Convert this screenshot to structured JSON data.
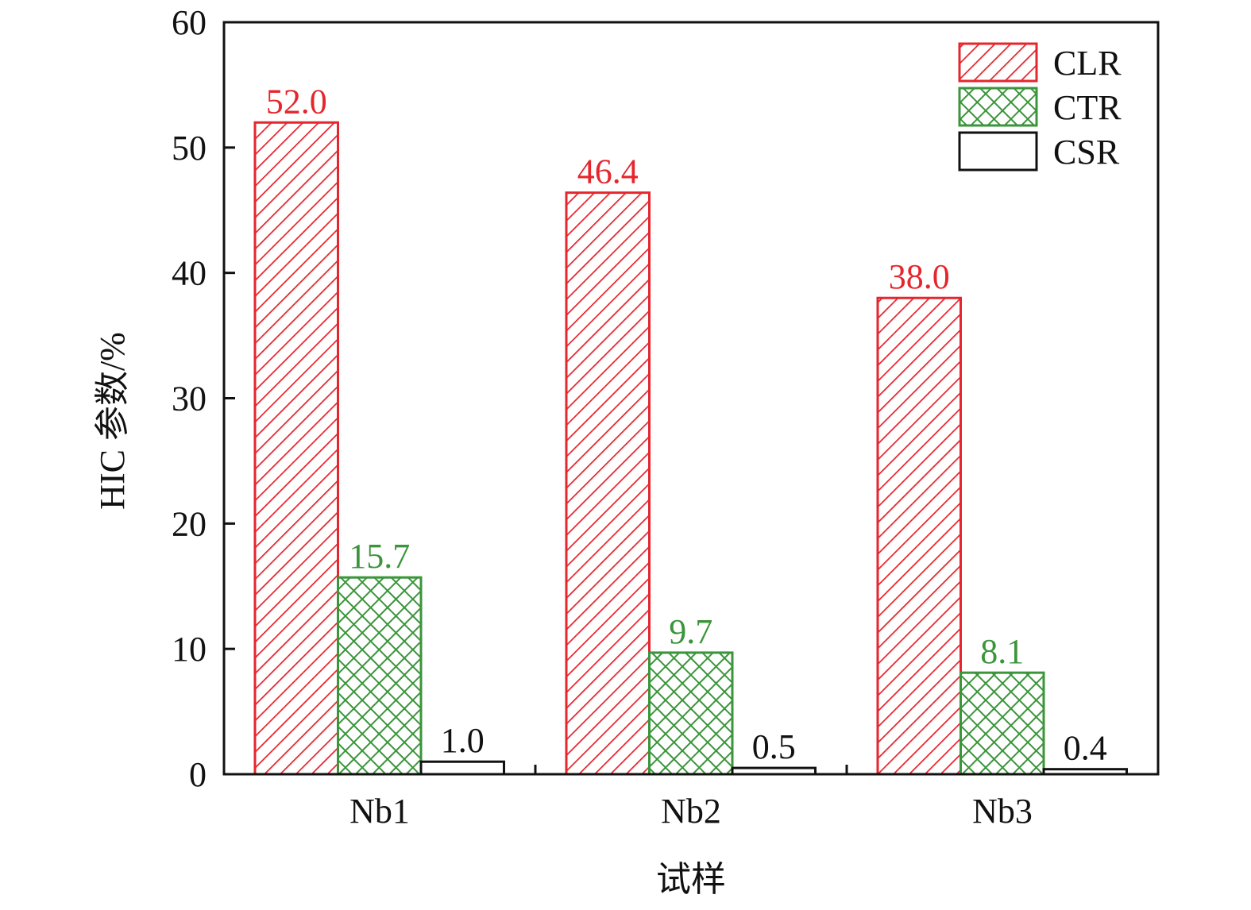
{
  "chart_data": {
    "type": "bar",
    "title": "",
    "xlabel": "试样",
    "ylabel": "HIC 参数/%",
    "ylim": [
      0,
      60
    ],
    "yticks": [
      0,
      10,
      20,
      30,
      40,
      50,
      60
    ],
    "categories": [
      "Nb1",
      "Nb2",
      "Nb3"
    ],
    "legend_position": "top-right",
    "series": [
      {
        "name": "CLR",
        "values": [
          52.0,
          46.4,
          38.0
        ],
        "labels": [
          "52.0",
          "46.4",
          "38.0"
        ],
        "color": "#e5262d",
        "pattern": "diagonal-hatch"
      },
      {
        "name": "CTR",
        "values": [
          15.7,
          9.7,
          8.1
        ],
        "labels": [
          "15.7",
          "9.7",
          "8.1"
        ],
        "color": "#3b953b",
        "pattern": "crosshatch"
      },
      {
        "name": "CSR",
        "values": [
          1.0,
          0.5,
          0.4
        ],
        "labels": [
          "1.0",
          "0.5",
          "0.4"
        ],
        "color": "#111111",
        "pattern": "none"
      }
    ]
  }
}
